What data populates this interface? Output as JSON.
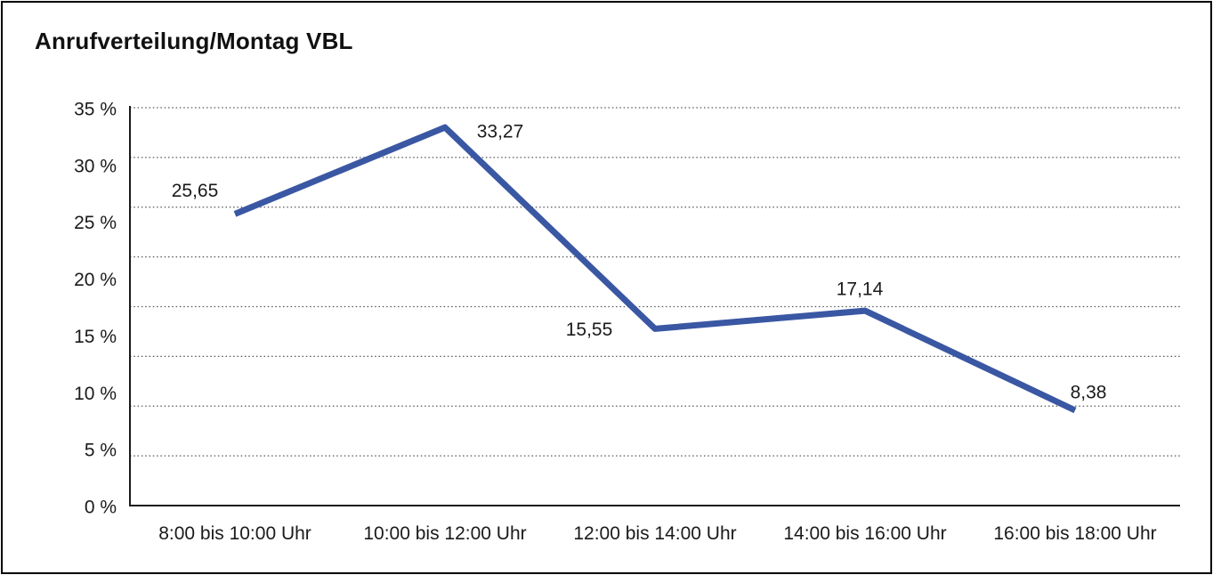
{
  "chart_data": {
    "type": "line",
    "title": "Anrufverteilung/Montag VBL",
    "categories": [
      "8:00 bis 10:00 Uhr",
      "10:00 bis 12:00 Uhr",
      "12:00 bis 14:00 Uhr",
      "14:00 bis 16:00 Uhr",
      "16:00 bis 18:00 Uhr"
    ],
    "values": [
      25.65,
      33.27,
      15.55,
      17.14,
      8.38
    ],
    "value_labels": [
      "25,65",
      "33,27",
      "15,55",
      "17,14",
      "8,38"
    ],
    "y_tick_labels": [
      "35 %",
      "30 %",
      "25 %",
      "20 %",
      "15 %",
      "10 %",
      "5 %",
      "0 %"
    ],
    "ylim": [
      0,
      35
    ],
    "grid_divisions": 8,
    "grid_style": "dotted horizontal",
    "legend": "none",
    "line_color": "#3A57A3",
    "axis_color": "#1a1a1a",
    "grid_color": "#555555",
    "text_color": "#1a1a1a"
  }
}
